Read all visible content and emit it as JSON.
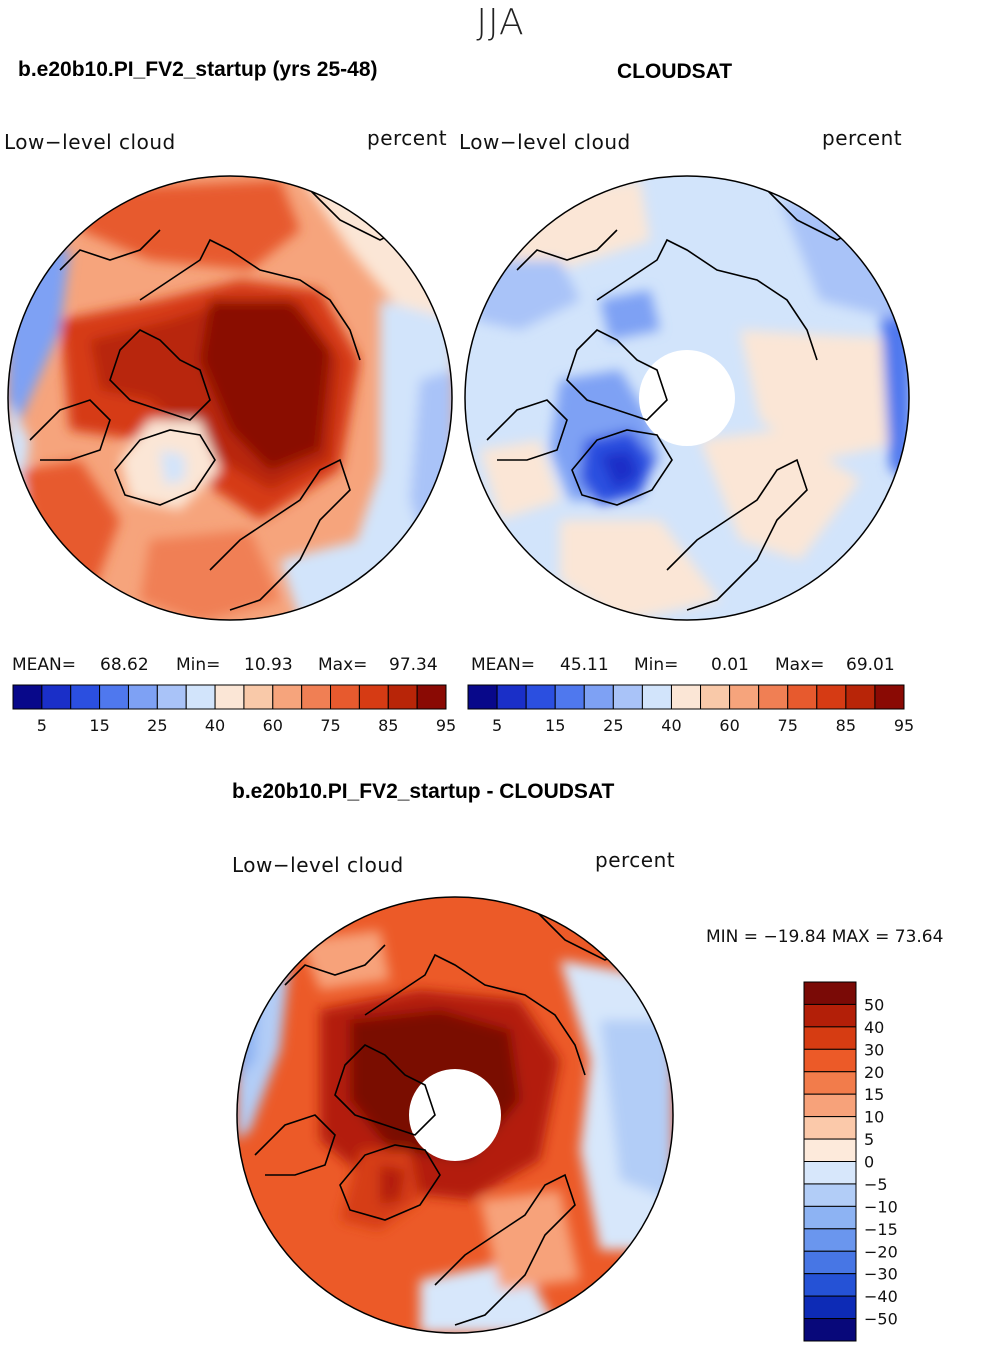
{
  "figure": {
    "season": "JJA",
    "panel_left_title": "b.e20b10.PI_FV2_startup (yrs 25-48)",
    "panel_right_title": "CLOUDSAT",
    "panel_diff_title": "b.e20b10.PI_FV2_startup - CLOUDSAT"
  },
  "panels": {
    "left": {
      "variable": "Low−level cloud",
      "units": "percent",
      "mean_label": "MEAN=",
      "mean": "68.62",
      "min_label": "Min=",
      "min": "10.93",
      "max_label": "Max=",
      "max": "97.34"
    },
    "right": {
      "variable": "Low−level cloud",
      "units": "percent",
      "mean_label": "MEAN=",
      "mean": "45.11",
      "min_label": "Min=",
      "min": "0.01",
      "max_label": "Max=",
      "max": "69.01"
    },
    "diff": {
      "variable": "Low−level cloud",
      "units": "percent",
      "minmax_text": "MIN = −19.84 MAX =   73.64"
    }
  },
  "chart_data": [
    {
      "type": "heatmap",
      "projection": "north polar stereographic",
      "title": "b.e20b10.PI_FV2_startup (yrs 25-48)",
      "field": "Low-level cloud",
      "units": "percent",
      "mean": 68.62,
      "min": 10.93,
      "max": 97.34,
      "colorbar_levels": [
        5,
        15,
        25,
        40,
        60,
        75,
        85,
        95
      ],
      "colorbar_tick_labels": [
        "5",
        "15",
        "25",
        "40",
        "60",
        "75",
        "85",
        "95"
      ],
      "colors": [
        "#08088a",
        "#1a2fc8",
        "#2b4fe0",
        "#4f78ee",
        "#7ea1f4",
        "#a9c3f8",
        "#d2e4fb",
        "#fbe6d6",
        "#f9c9a9",
        "#f6a47c",
        "#f07f54",
        "#e75a2e",
        "#d63b14",
        "#b82508",
        "#8a0a04"
      ]
    },
    {
      "type": "heatmap",
      "projection": "north polar stereographic",
      "title": "CLOUDSAT",
      "field": "Low-level cloud",
      "units": "percent",
      "mean": 45.11,
      "min": 0.01,
      "max": 69.01,
      "colorbar_levels": [
        5,
        15,
        25,
        40,
        60,
        75,
        85,
        95
      ],
      "colorbar_tick_labels": [
        "5",
        "15",
        "25",
        "40",
        "60",
        "75",
        "85",
        "95"
      ],
      "colors": [
        "#08088a",
        "#1a2fc8",
        "#2b4fe0",
        "#4f78ee",
        "#7ea1f4",
        "#a9c3f8",
        "#d2e4fb",
        "#fbe6d6",
        "#f9c9a9",
        "#f6a47c",
        "#f07f54",
        "#e75a2e",
        "#d63b14",
        "#b82508",
        "#8a0a04"
      ]
    },
    {
      "type": "heatmap",
      "projection": "north polar stereographic",
      "title": "b.e20b10.PI_FV2_startup - CLOUDSAT",
      "field": "Low-level cloud",
      "units": "percent",
      "min": -19.84,
      "max": 73.64,
      "colorbar_levels": [
        50,
        40,
        30,
        20,
        15,
        10,
        5,
        0,
        -5,
        -10,
        -15,
        -20,
        -30,
        -40,
        -50
      ],
      "colorbar_tick_labels": [
        "50",
        "40",
        "30",
        "20",
        "15",
        "10",
        "5",
        "0",
        "−5",
        "−10",
        "−15",
        "−20",
        "−30",
        "−40",
        "−50"
      ],
      "colors": [
        "#7a0a06",
        "#b31f08",
        "#d63c12",
        "#ec5a28",
        "#f27c4b",
        "#f7a27a",
        "#fbc9aa",
        "#fdeadb",
        "#d7e7fb",
        "#b2cdf7",
        "#8db3f3",
        "#6a96ee",
        "#4776e5",
        "#2552d6",
        "#0d2bb6",
        "#08087a"
      ]
    }
  ]
}
